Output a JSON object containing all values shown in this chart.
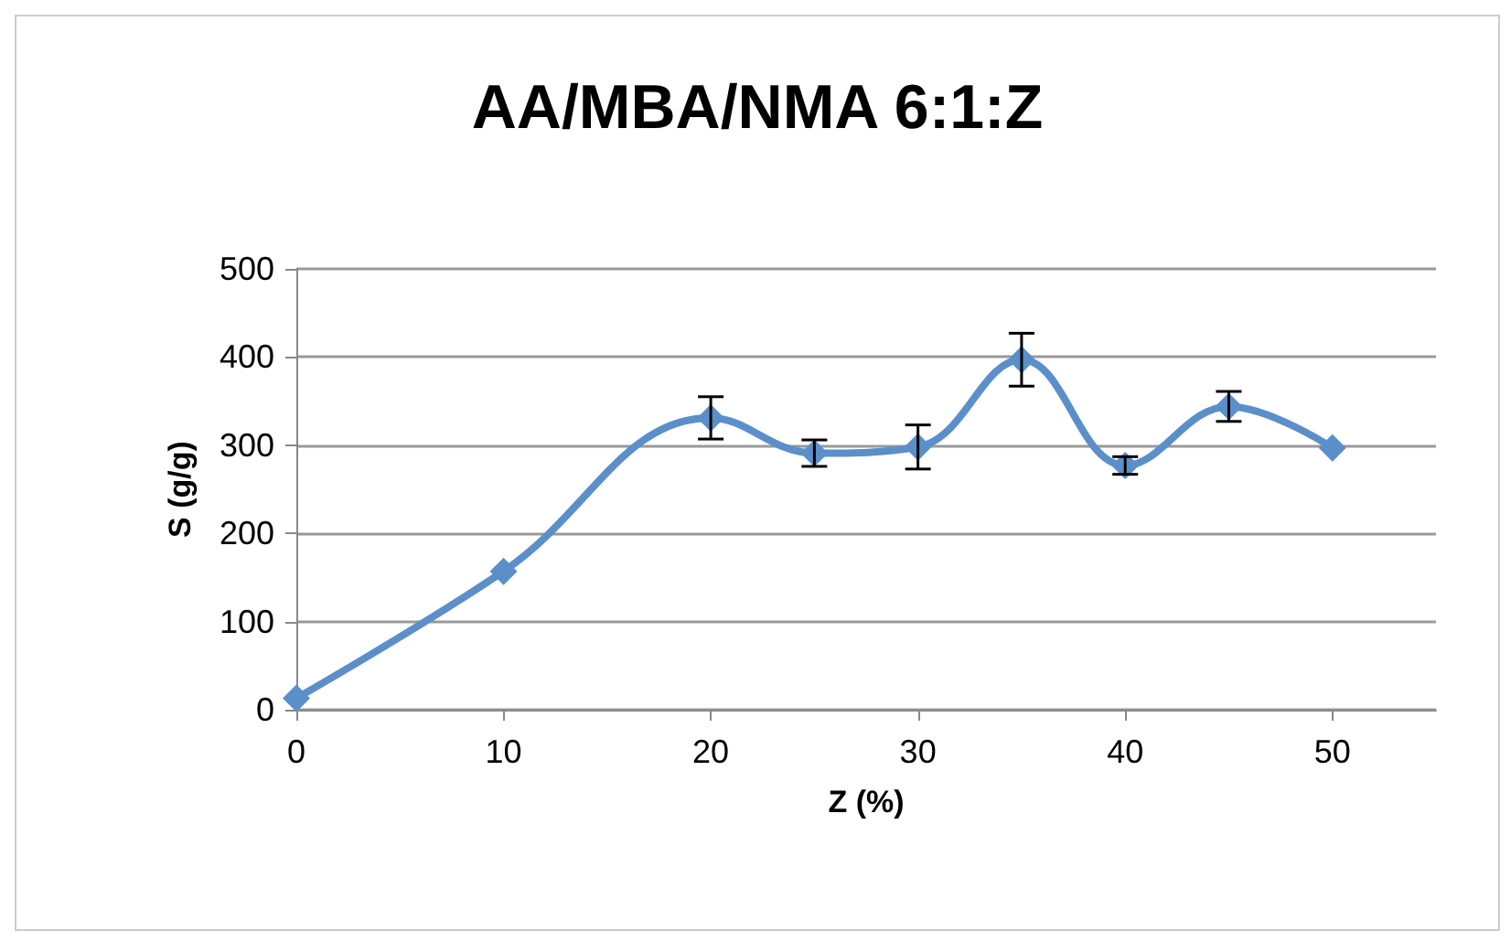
{
  "chart_data": {
    "type": "line",
    "title": "AA/MBA/NMA 6:1:Z",
    "xlabel": "Z (%)",
    "ylabel": "S (g/g)",
    "x": [
      0,
      10,
      20,
      25,
      30,
      35,
      40,
      45,
      50
    ],
    "series": [
      {
        "color": "#5b8fc9",
        "values": [
          13,
          157,
          331,
          291,
          298,
          397,
          277,
          344,
          297
        ],
        "errors": [
          null,
          null,
          24,
          15,
          25,
          30,
          10,
          17,
          null
        ]
      }
    ],
    "xlim": [
      0,
      55
    ],
    "xticks": [
      0,
      10,
      20,
      30,
      40,
      50
    ],
    "ylim": [
      0,
      500
    ],
    "yticks": [
      0,
      100,
      200,
      300,
      400,
      500
    ],
    "grid": "y",
    "marker": "diamond",
    "line_style": "solid"
  }
}
